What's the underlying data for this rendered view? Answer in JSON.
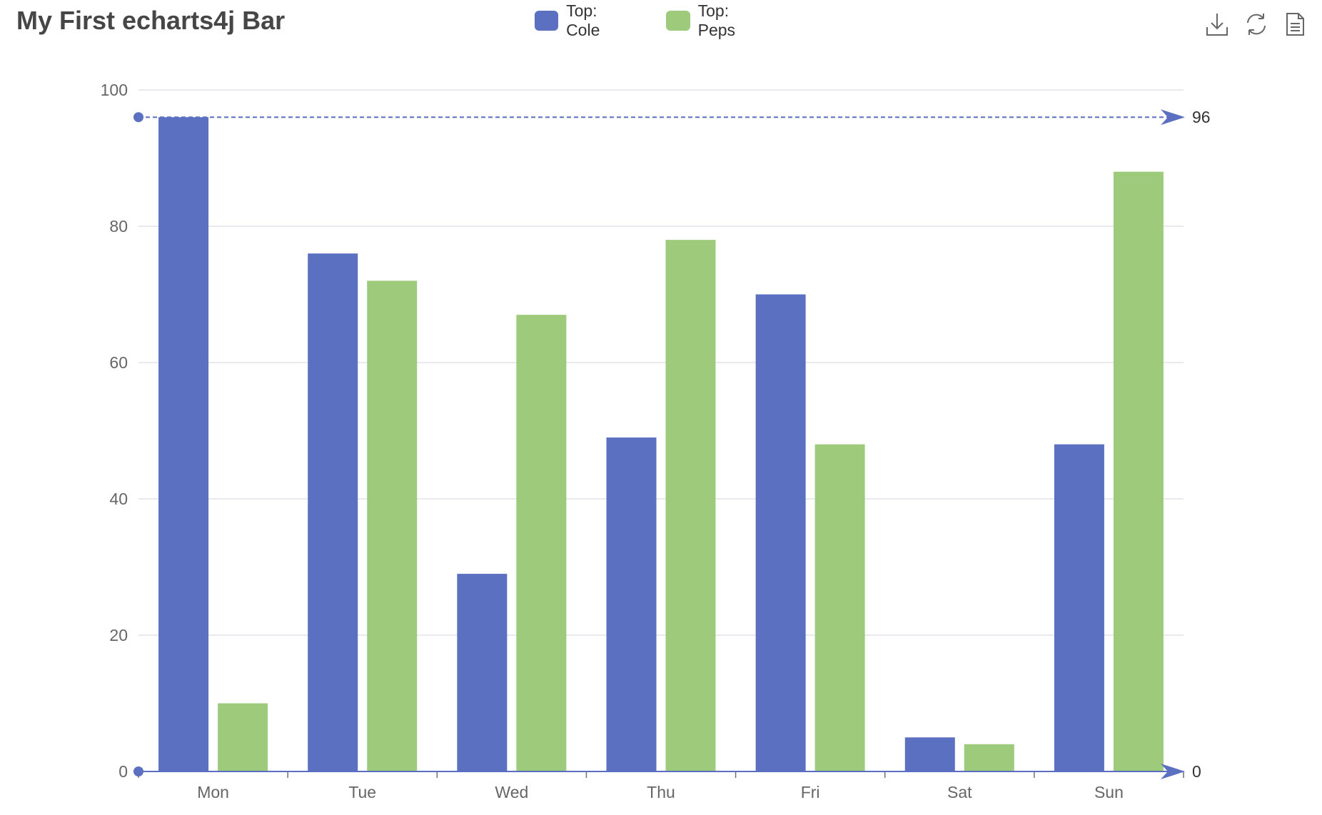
{
  "title": "My First echarts4j Bar",
  "toolbox": {
    "icons": [
      "download-icon",
      "refresh-icon",
      "data-view-icon"
    ]
  },
  "colors": {
    "series1": "#5b70c0",
    "series2": "#9ecb7b",
    "axis": "#5b70c0",
    "grid": "#e0e3ec",
    "label": "#666666"
  },
  "chart_data": {
    "type": "bar",
    "title": "My First echarts4j Bar",
    "categories": [
      "Mon",
      "Tue",
      "Wed",
      "Thu",
      "Fri",
      "Sat",
      "Sun"
    ],
    "series": [
      {
        "name": "Top: Cole",
        "values": [
          96,
          76,
          29,
          49,
          70,
          5,
          48
        ]
      },
      {
        "name": "Top: Peps",
        "values": [
          10,
          72,
          67,
          78,
          48,
          4,
          88
        ]
      }
    ],
    "ylim": [
      0,
      100
    ],
    "yticks": [
      0,
      20,
      40,
      60,
      80,
      100
    ],
    "grid": true,
    "legend_position": "top-center",
    "markLine": {
      "series": "Top: Cole",
      "values": [
        96,
        0
      ]
    }
  }
}
